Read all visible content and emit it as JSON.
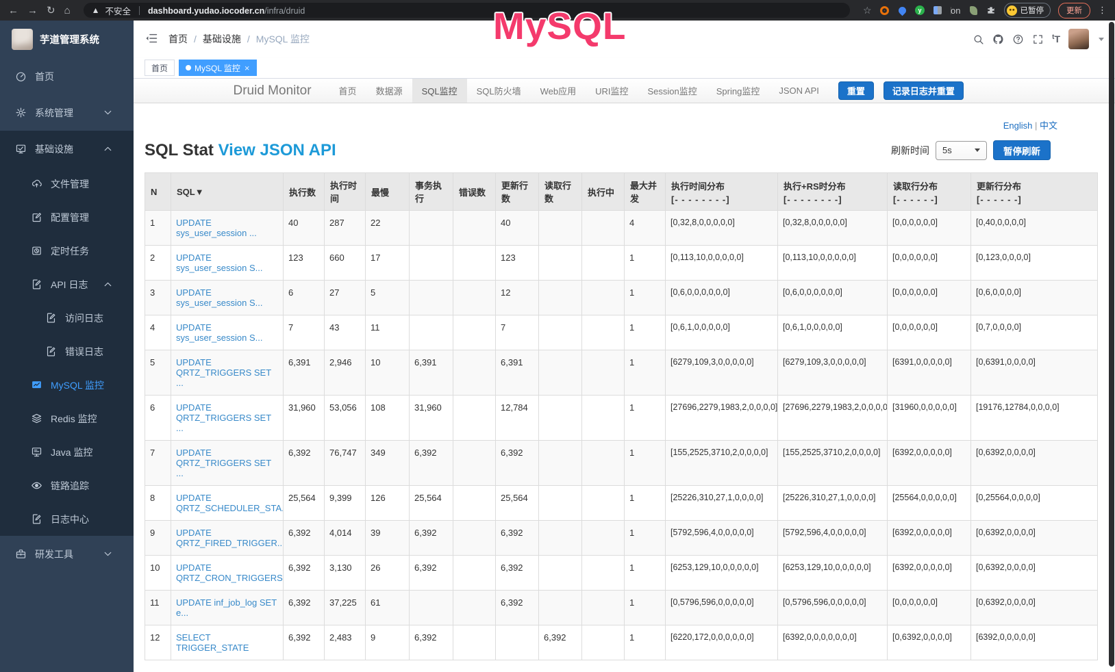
{
  "browser": {
    "security_warning": "不安全",
    "url_host": "dashboard.yudao.iocoder.cn",
    "url_path": "/infra/druid",
    "extension_badge": "on",
    "profile_label": "已暂停",
    "update_button": "更新"
  },
  "overlay": {
    "watermark": "MySQL"
  },
  "sidebar": {
    "app_title": "芋道管理系统",
    "items": [
      {
        "id": "home",
        "label": "首页",
        "icon": "gauge-icon",
        "level": 0,
        "dark": false,
        "active": false,
        "chevron": ""
      },
      {
        "id": "system",
        "label": "系统管理",
        "icon": "gear-icon",
        "level": 0,
        "dark": false,
        "active": false,
        "chevron": "down"
      },
      {
        "id": "infra",
        "label": "基础设施",
        "icon": "chart-icon",
        "level": 0,
        "dark": true,
        "active": false,
        "chevron": "up"
      },
      {
        "id": "file",
        "label": "文件管理",
        "icon": "cloud-upload-icon",
        "level": 1,
        "dark": true,
        "active": false,
        "chevron": ""
      },
      {
        "id": "config",
        "label": "配置管理",
        "icon": "edit-icon",
        "level": 1,
        "dark": true,
        "active": false,
        "chevron": ""
      },
      {
        "id": "job",
        "label": "定时任务",
        "icon": "timer-icon",
        "level": 1,
        "dark": true,
        "active": false,
        "chevron": ""
      },
      {
        "id": "api-log",
        "label": "API 日志",
        "icon": "log-icon",
        "level": 1,
        "dark": true,
        "active": false,
        "chevron": "up"
      },
      {
        "id": "access-log",
        "label": "访问日志",
        "icon": "log-icon",
        "level": 2,
        "dark": true,
        "active": false,
        "chevron": ""
      },
      {
        "id": "error-log",
        "label": "错误日志",
        "icon": "log-icon",
        "level": 2,
        "dark": true,
        "active": false,
        "chevron": ""
      },
      {
        "id": "mysql",
        "label": "MySQL 监控",
        "icon": "mysql-icon",
        "level": 1,
        "dark": true,
        "active": true,
        "chevron": ""
      },
      {
        "id": "redis",
        "label": "Redis 监控",
        "icon": "redis-icon",
        "level": 1,
        "dark": true,
        "active": false,
        "chevron": ""
      },
      {
        "id": "java",
        "label": "Java 监控",
        "icon": "java-icon",
        "level": 1,
        "dark": true,
        "active": false,
        "chevron": ""
      },
      {
        "id": "trace",
        "label": "链路追踪",
        "icon": "eye-icon",
        "level": 1,
        "dark": true,
        "active": false,
        "chevron": ""
      },
      {
        "id": "log-center",
        "label": "日志中心",
        "icon": "log-icon",
        "level": 1,
        "dark": true,
        "active": false,
        "chevron": ""
      },
      {
        "id": "dev-tool",
        "label": "研发工具",
        "icon": "briefcase-icon",
        "level": 0,
        "dark": false,
        "active": false,
        "chevron": "down"
      }
    ]
  },
  "header": {
    "breadcrumb": {
      "0": "首页",
      "1": "基础设施",
      "2": "MySQL 监控",
      "sep": "/"
    }
  },
  "tags": [
    {
      "id": "home",
      "label": "首页",
      "active": false,
      "closable": false
    },
    {
      "id": "mysql-monitor",
      "label": "MySQL 监控",
      "active": true,
      "closable": true
    }
  ],
  "druid": {
    "brand": "Druid Monitor",
    "items": [
      {
        "id": "home",
        "label": "首页",
        "active": false
      },
      {
        "id": "datasource",
        "label": "数据源",
        "active": false
      },
      {
        "id": "sql",
        "label": "SQL监控",
        "active": true
      },
      {
        "id": "wall",
        "label": "SQL防火墙",
        "active": false
      },
      {
        "id": "webapp",
        "label": "Web应用",
        "active": false
      },
      {
        "id": "uri",
        "label": "URI监控",
        "active": false
      },
      {
        "id": "session",
        "label": "Session监控",
        "active": false
      },
      {
        "id": "spring",
        "label": "Spring监控",
        "active": false
      },
      {
        "id": "json-api",
        "label": "JSON API",
        "active": false
      }
    ],
    "reset_button": "重置",
    "log_reset_button": "记录日志并重置"
  },
  "toolbar": {
    "lang_en": "English",
    "lang_sep": "|",
    "lang_zh": "中文",
    "title": "SQL Stat",
    "title_link": "View JSON API",
    "refresh_label": "刷新时间",
    "refresh_value": "5s",
    "pause_button": "暂停刷新"
  },
  "table": {
    "headers": [
      {
        "id": "n",
        "label": "N"
      },
      {
        "id": "sql",
        "label": "SQL▼"
      },
      {
        "id": "exec-count",
        "label": "执行数"
      },
      {
        "id": "exec-time",
        "label": "执行时间"
      },
      {
        "id": "max",
        "label": "最慢"
      },
      {
        "id": "tx-exec",
        "label": "事务执行"
      },
      {
        "id": "error-count",
        "label": "错误数"
      },
      {
        "id": "update-rows",
        "label": "更新行数"
      },
      {
        "id": "fetch-rows",
        "label": "读取行数"
      },
      {
        "id": "running",
        "label": "执行中"
      },
      {
        "id": "max-concurrent",
        "label": "最大并发"
      },
      {
        "id": "exec-time-dist",
        "label": "执行时间分布",
        "sub": "[- - - - - - - -]"
      },
      {
        "id": "exec-rs-dist",
        "label": "执行+RS时分布",
        "sub": "[- - - - - - - -]"
      },
      {
        "id": "fetch-row-dist",
        "label": "读取行分布",
        "sub": "[- - - - - -]"
      },
      {
        "id": "update-row-dist",
        "label": "更新行分布",
        "sub": "[- - - - - -]"
      }
    ],
    "rows": [
      [
        "1",
        "UPDATE sys_user_session ...",
        "40",
        "287",
        "22",
        "",
        "",
        "40",
        "",
        "",
        "4",
        "[0,32,8,0,0,0,0,0]",
        "[0,32,8,0,0,0,0,0]",
        "[0,0,0,0,0,0]",
        "[0,40,0,0,0,0]"
      ],
      [
        "2",
        "UPDATE sys_user_session S...",
        "123",
        "660",
        "17",
        "",
        "",
        "123",
        "",
        "",
        "1",
        "[0,113,10,0,0,0,0,0]",
        "[0,113,10,0,0,0,0,0]",
        "[0,0,0,0,0,0]",
        "[0,123,0,0,0,0]"
      ],
      [
        "3",
        "UPDATE sys_user_session S...",
        "6",
        "27",
        "5",
        "",
        "",
        "12",
        "",
        "",
        "1",
        "[0,6,0,0,0,0,0,0]",
        "[0,6,0,0,0,0,0,0]",
        "[0,0,0,0,0,0]",
        "[0,6,0,0,0,0]"
      ],
      [
        "4",
        "UPDATE sys_user_session S...",
        "7",
        "43",
        "11",
        "",
        "",
        "7",
        "",
        "",
        "1",
        "[0,6,1,0,0,0,0,0]",
        "[0,6,1,0,0,0,0,0]",
        "[0,0,0,0,0,0]",
        "[0,7,0,0,0,0]"
      ],
      [
        "5",
        "UPDATE QRTZ_TRIGGERS SET ...",
        "6,391",
        "2,946",
        "10",
        "6,391",
        "",
        "6,391",
        "",
        "",
        "1",
        "[6279,109,3,0,0,0,0,0]",
        "[6279,109,3,0,0,0,0,0]",
        "[6391,0,0,0,0,0]",
        "[0,6391,0,0,0,0]"
      ],
      [
        "6",
        "UPDATE QRTZ_TRIGGERS SET ...",
        "31,960",
        "53,056",
        "108",
        "31,960",
        "",
        "12,784",
        "",
        "",
        "1",
        "[27696,2279,1983,2,0,0,0,0]",
        "[27696,2279,1983,2,0,0,0,0]",
        "[31960,0,0,0,0,0]",
        "[19176,12784,0,0,0,0]"
      ],
      [
        "7",
        "UPDATE QRTZ_TRIGGERS SET ...",
        "6,392",
        "76,747",
        "349",
        "6,392",
        "",
        "6,392",
        "",
        "",
        "1",
        "[155,2525,3710,2,0,0,0,0]",
        "[155,2525,3710,2,0,0,0,0]",
        "[6392,0,0,0,0,0]",
        "[0,6392,0,0,0,0]"
      ],
      [
        "8",
        "UPDATE QRTZ_SCHEDULER_STA...",
        "25,564",
        "9,399",
        "126",
        "25,564",
        "",
        "25,564",
        "",
        "",
        "1",
        "[25226,310,27,1,0,0,0,0]",
        "[25226,310,27,1,0,0,0,0]",
        "[25564,0,0,0,0,0]",
        "[0,25564,0,0,0,0]"
      ],
      [
        "9",
        "UPDATE QRTZ_FIRED_TRIGGER...",
        "6,392",
        "4,014",
        "39",
        "6,392",
        "",
        "6,392",
        "",
        "",
        "1",
        "[5792,596,4,0,0,0,0,0]",
        "[5792,596,4,0,0,0,0,0]",
        "[6392,0,0,0,0,0]",
        "[0,6392,0,0,0,0]"
      ],
      [
        "10",
        "UPDATE QRTZ_CRON_TRIGGERS...",
        "6,392",
        "3,130",
        "26",
        "6,392",
        "",
        "6,392",
        "",
        "",
        "1",
        "[6253,129,10,0,0,0,0,0]",
        "[6253,129,10,0,0,0,0,0]",
        "[6392,0,0,0,0,0]",
        "[0,6392,0,0,0,0]"
      ],
      [
        "11",
        "UPDATE inf_job_log SET e...",
        "6,392",
        "37,225",
        "61",
        "",
        "",
        "6,392",
        "",
        "",
        "1",
        "[0,5796,596,0,0,0,0,0]",
        "[0,5796,596,0,0,0,0,0]",
        "[0,0,0,0,0,0]",
        "[0,6392,0,0,0,0]"
      ],
      [
        "12",
        "SELECT TRIGGER_STATE",
        "6,392",
        "2,483",
        "9",
        "6,392",
        "",
        "",
        "6,392",
        "",
        "1",
        "[6220,172,0,0,0,0,0,0]",
        "[6392,0,0,0,0,0,0,0]",
        "[0,6392,0,0,0,0]",
        "[6392,0,0,0,0,0]"
      ]
    ]
  }
}
